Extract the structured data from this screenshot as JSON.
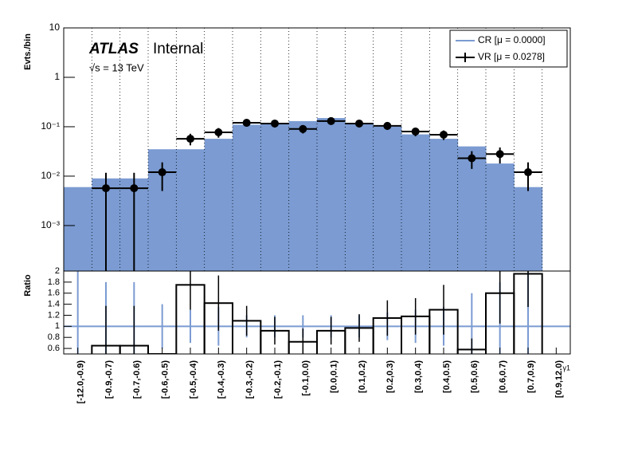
{
  "chart_data": {
    "type": "bar",
    "log_scale": true,
    "y_label": "Evts./bin",
    "x_label": "γ1",
    "annotations": [
      "ATLAS",
      "Internal",
      "√s = 13 TeV"
    ],
    "legend": "top-right",
    "grid": true,
    "categories": [
      "[-12.0,-0.9)",
      "[-0.9,-0.7)",
      "[-0.7,-0.6)",
      "[-0.6,-0.5)",
      "[-0.5,-0.4)",
      "[-0.4,-0.3)",
      "[-0.3,-0.2)",
      "[-0.2,-0.1)",
      "[-0.1,0.0)",
      "[0.0,0.1)",
      "[0.1,0.2)",
      "[0.2,0.3)",
      "[0.3,0.4)",
      "[0.4,0.5)",
      "[0.5,0.6)",
      "[0.6,0.7)",
      "[0.7,0.9)",
      "[0.9,12.0)"
    ],
    "series": [
      {
        "name": "CR [μ = 0.0000]",
        "color": "#7b9bd2",
        "values": [
          0.006,
          0.009,
          0.009,
          0.035,
          0.035,
          0.057,
          0.11,
          0.12,
          0.13,
          0.15,
          0.12,
          0.1,
          0.07,
          0.057,
          0.04,
          0.018,
          0.006,
          null
        ]
      },
      {
        "name": "VR [μ = 0.0278]",
        "color": "#000000",
        "values": [
          null,
          0.0057,
          0.0057,
          0.012,
          0.057,
          0.077,
          0.12,
          0.116,
          0.09,
          0.13,
          0.116,
          0.104,
          0.08,
          0.069,
          0.023,
          0.028,
          0.012,
          null
        ],
        "errors": [
          null,
          0.006,
          0.006,
          0.007,
          0.015,
          0.017,
          0.02,
          0.019,
          0.017,
          0.02,
          0.019,
          0.018,
          0.016,
          0.015,
          0.009,
          0.01,
          0.007,
          null
        ]
      }
    ],
    "ylim": [
      0.00012,
      10
    ],
    "yticks": [
      {
        "value": 10,
        "label": "10"
      },
      {
        "value": 1,
        "label": "1"
      },
      {
        "value": 0.1,
        "label": "10⁻¹"
      },
      {
        "value": 0.01,
        "label": "10⁻²"
      },
      {
        "value": 0.001,
        "label": "10⁻³"
      }
    ],
    "ratio": {
      "y_label": "Ratio",
      "ylim": [
        0.5,
        2.0
      ],
      "yticks": [
        0.6,
        0.8,
        1,
        1.2,
        1.4,
        1.6,
        1.8,
        2
      ],
      "reference": 1,
      "values": [
        null,
        0.65,
        0.65,
        0.5,
        1.75,
        1.42,
        1.1,
        0.92,
        0.72,
        0.92,
        0.97,
        1.15,
        1.18,
        1.3,
        0.58,
        1.6,
        1.95,
        null
      ],
      "errors": [
        null,
        0.72,
        0.72,
        null,
        0.45,
        0.5,
        0.27,
        0.25,
        0.24,
        0.25,
        0.25,
        0.32,
        0.33,
        0.45,
        0.2,
        0.55,
        0.6,
        null
      ],
      "cr_errors": [
        1.5,
        0.8,
        0.8,
        0.4,
        0.3,
        0.35,
        0.2,
        0.2,
        0.2,
        0.2,
        0.2,
        0.25,
        0.3,
        0.35,
        0.6,
        0.8,
        1.0,
        null
      ]
    }
  }
}
